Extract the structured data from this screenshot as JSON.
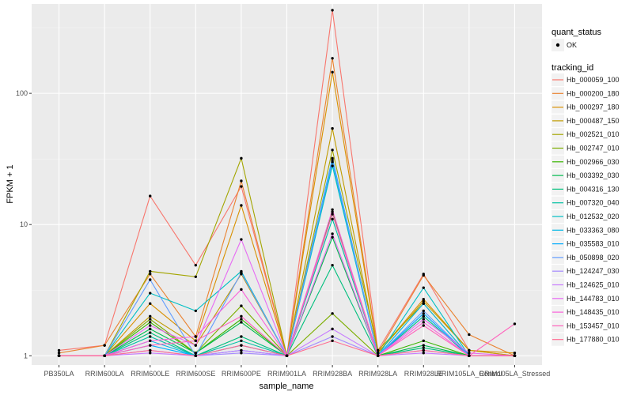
{
  "chart_data": {
    "type": "line",
    "xlabel": "sample_name",
    "ylabel": "FPKM + 1",
    "y_scale": "log10",
    "ylim": [
      0.85,
      480
    ],
    "y_ticks": [
      1,
      10,
      100
    ],
    "y_tick_labels": [
      "1",
      "10",
      "100"
    ],
    "grid": true,
    "background": "#ebebeb",
    "categories": [
      "PB350LA",
      "RRIM600LA",
      "RRIM600LE",
      "RRIM600SE",
      "RRIM600PE",
      "RRIM901LA",
      "RRIM928BA",
      "RRIM928LA",
      "RRIM928LE",
      "RRIM105LA_Control",
      "RRIM105LA_Stressed"
    ],
    "category_labels": [
      "PB350LA",
      "RRIM600LA",
      "RRIM600LE",
      "RRIM600SE",
      "RRIM600PE",
      "RRIM901LA",
      "RRIM928BA",
      "RRIM928LA",
      "RRIM928LE",
      "RRIM105LA_Control",
      "RRIM105LA_Stressed"
    ],
    "shape_legend": {
      "title": "quant_status",
      "items": [
        {
          "label": "OK",
          "icon": "filled-circle"
        }
      ]
    },
    "legend_title": "tracking_id",
    "legend_position": "right",
    "series": [
      {
        "name": "Hb_000059_100",
        "color": "#F8766D",
        "values": [
          1.1,
          1.2,
          16.5,
          4.9,
          19.5,
          1.0,
          430,
          1.1,
          4.2,
          1.1,
          1.0
        ]
      },
      {
        "name": "Hb_000200_180",
        "color": "#EA8331",
        "values": [
          1.05,
          1.2,
          4.2,
          1.4,
          21.5,
          1.0,
          185,
          1.05,
          4.1,
          1.45,
          1.0
        ]
      },
      {
        "name": "Hb_000297_180",
        "color": "#D89000",
        "values": [
          1.0,
          1.0,
          2.5,
          1.3,
          14.0,
          1.0,
          145,
          1.05,
          2.7,
          1.1,
          1.05
        ]
      },
      {
        "name": "Hb_000487_150",
        "color": "#C09B00",
        "values": [
          1.0,
          1.0,
          2.0,
          1.2,
          4.2,
          1.0,
          54,
          1.05,
          2.6,
          1.1,
          1.0
        ]
      },
      {
        "name": "Hb_002521_010",
        "color": "#A3A500",
        "values": [
          1.0,
          1.0,
          4.4,
          4.0,
          32.0,
          1.0,
          37,
          1.1,
          2.5,
          1.0,
          1.0
        ]
      },
      {
        "name": "Hb_002747_010",
        "color": "#7CAE00",
        "values": [
          1.0,
          1.0,
          1.9,
          1.05,
          2.4,
          1.0,
          2.1,
          1.0,
          2.0,
          1.0,
          1.0
        ]
      },
      {
        "name": "Hb_002966_030",
        "color": "#39B600",
        "values": [
          1.0,
          1.0,
          1.8,
          1.05,
          1.9,
          1.0,
          12.5,
          1.0,
          1.3,
          1.0,
          1.0
        ]
      },
      {
        "name": "Hb_003392_030",
        "color": "#00BB4E",
        "values": [
          1.0,
          1.0,
          1.6,
          1.05,
          1.8,
          1.0,
          8.0,
          1.0,
          1.2,
          1.0,
          1.0
        ]
      },
      {
        "name": "Hb_004316_130",
        "color": "#00BF7D",
        "values": [
          1.0,
          1.0,
          1.5,
          1.0,
          1.4,
          1.0,
          4.9,
          1.0,
          1.15,
          1.0,
          1.0
        ]
      },
      {
        "name": "Hb_007320_040",
        "color": "#00C1A3",
        "values": [
          1.0,
          1.0,
          1.4,
          1.0,
          1.3,
          1.0,
          11.0,
          1.0,
          2.0,
          1.0,
          1.0
        ]
      },
      {
        "name": "Hb_012532_020",
        "color": "#00BFC4",
        "values": [
          1.0,
          1.0,
          3.0,
          2.2,
          4.4,
          1.0,
          28.0,
          1.0,
          3.3,
          1.0,
          1.0
        ]
      },
      {
        "name": "Hb_033363_080",
        "color": "#00B8E5",
        "values": [
          1.0,
          1.0,
          1.3,
          1.0,
          1.2,
          1.0,
          30.0,
          1.0,
          2.5,
          1.0,
          1.0
        ]
      },
      {
        "name": "Hb_035583_010",
        "color": "#00ABFD",
        "values": [
          1.0,
          1.0,
          1.2,
          1.0,
          1.1,
          1.0,
          32.0,
          1.0,
          2.1,
          1.0,
          1.0
        ]
      },
      {
        "name": "Hb_050898_020",
        "color": "#619CFF",
        "values": [
          1.0,
          1.0,
          3.8,
          1.0,
          4.3,
          1.0,
          31.0,
          1.0,
          2.2,
          1.0,
          1.0
        ]
      },
      {
        "name": "Hb_124247_030",
        "color": "#A58AFF",
        "values": [
          1.0,
          1.0,
          1.1,
          1.0,
          1.05,
          1.0,
          1.4,
          1.0,
          1.1,
          1.0,
          1.0
        ]
      },
      {
        "name": "Hb_124625_010",
        "color": "#C77CFF",
        "values": [
          1.0,
          1.0,
          1.05,
          1.0,
          1.1,
          1.0,
          1.6,
          1.0,
          1.05,
          1.0,
          1.0
        ]
      },
      {
        "name": "Hb_144783_010",
        "color": "#E76BF3",
        "values": [
          1.0,
          1.0,
          1.7,
          1.2,
          7.7,
          1.0,
          8.5,
          1.0,
          1.9,
          1.05,
          1.0
        ]
      },
      {
        "name": "Hb_148435_010",
        "color": "#FA62DB",
        "values": [
          1.0,
          1.0,
          1.3,
          1.4,
          3.2,
          1.0,
          13.0,
          1.0,
          1.8,
          1.0,
          1.0
        ]
      },
      {
        "name": "Hb_153457_010",
        "color": "#FF62BC",
        "values": [
          1.0,
          1.0,
          1.2,
          1.3,
          2.0,
          1.0,
          12.0,
          1.0,
          1.7,
          1.0,
          1.75
        ]
      },
      {
        "name": "Hb_177880_010",
        "color": "#FF6C91",
        "values": [
          1.0,
          1.0,
          1.1,
          1.0,
          1.2,
          1.0,
          1.3,
          1.0,
          1.1,
          1.0,
          1.0
        ]
      }
    ]
  }
}
